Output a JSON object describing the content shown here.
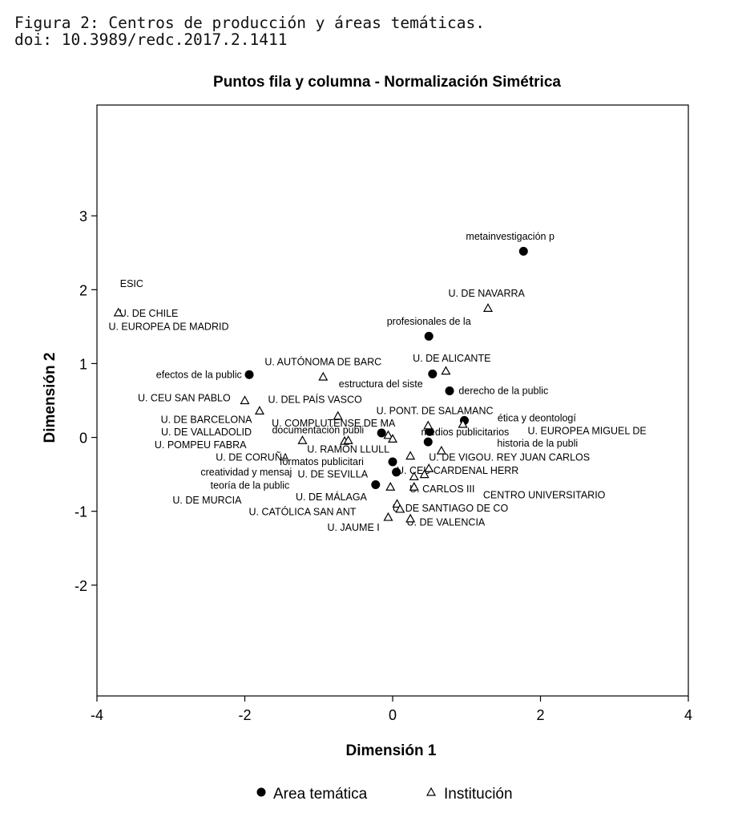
{
  "caption": {
    "line1": "Figura 2: Centros de producción y áreas temáticas.",
    "line2": "doi: 10.3989/redc.2017.2.1411"
  },
  "chart_data": {
    "type": "scatter",
    "title": "Puntos fila y columna - Normalización Simétrica",
    "xlabel": "Dimensión 1",
    "ylabel": "Dimensión 2",
    "xlim": [
      -4,
      4
    ],
    "ylim": [
      -3.5,
      4.5
    ],
    "xticks": [
      -4,
      -2,
      0,
      2,
      4
    ],
    "yticks": [
      -2,
      -1,
      0,
      1,
      2,
      3
    ],
    "grid": false,
    "legend_position": "bottom",
    "series": [
      {
        "name": "Area temática",
        "marker": "filled-circle",
        "points": [
          {
            "x": 1.77,
            "y": 2.52,
            "label": "metainvestigación p"
          },
          {
            "x": 0.49,
            "y": 1.37,
            "label": "profesionales de la"
          },
          {
            "x": 0.54,
            "y": 0.86,
            "label": "estructura del siste"
          },
          {
            "x": -1.94,
            "y": 0.85,
            "label": "efectos de la public"
          },
          {
            "x": 0.77,
            "y": 0.63,
            "label": "derecho de la public"
          },
          {
            "x": 0.97,
            "y": 0.23,
            "label": "ética y deontologí"
          },
          {
            "x": -0.15,
            "y": 0.06,
            "label": "documentación publi"
          },
          {
            "x": 0.5,
            "y": 0.08,
            "label": "medios publicitarios"
          },
          {
            "x": 0.48,
            "y": -0.06,
            "label": "historia de la publi"
          },
          {
            "x": 0.0,
            "y": -0.33,
            "label": "formatos publicitari"
          },
          {
            "x": 0.05,
            "y": -0.47,
            "label": "creatividad y mensaj"
          },
          {
            "x": -0.23,
            "y": -0.64,
            "label": "teoría de la public"
          }
        ]
      },
      {
        "name": "Institución",
        "marker": "open-triangle",
        "points": [
          {
            "x": -3.71,
            "y": 1.69,
            "label": "U. DE CHILE"
          },
          {
            "x": 1.29,
            "y": 1.75,
            "label": "U. DE NAVARRA"
          },
          {
            "x": -0.94,
            "y": 0.82,
            "label": "U. AUTÓNOMA DE BARC"
          },
          {
            "x": 0.72,
            "y": 0.9,
            "label": "U. DE ALICANTE"
          },
          {
            "x": -2.0,
            "y": 0.5,
            "label": "U. CEU SAN PABLO"
          },
          {
            "x": -1.8,
            "y": 0.36,
            "label": "U. DEL PAÍS VASCO"
          },
          {
            "x": -0.74,
            "y": 0.29,
            "label": "U. COMPLUTENSE DE MA"
          },
          {
            "x": 0.48,
            "y": 0.16,
            "label": "U. PONT. DE SALAMANC"
          },
          {
            "x": 0.95,
            "y": 0.18,
            "label": "U. EUROPEA MIGUEL DE"
          },
          {
            "x": -1.22,
            "y": -0.04,
            "label": "U. DE CORUÑA"
          },
          {
            "x": -0.65,
            "y": -0.05,
            "label": "U. RAMÓN LLULL"
          },
          {
            "x": -0.6,
            "y": -0.04,
            "label": "U. DE BARCELONA"
          },
          {
            "x": -0.06,
            "y": 0.03,
            "label": "U. DE VALLADOLID"
          },
          {
            "x": 0.0,
            "y": -0.02,
            "label": "U. POMPEU FABRA"
          },
          {
            "x": 0.66,
            "y": -0.18,
            "label": "U. REY JUAN CARLOS"
          },
          {
            "x": 0.24,
            "y": -0.25,
            "label": "U. DE VIGO"
          },
          {
            "x": 0.49,
            "y": -0.42,
            "label": "U. CEU CARDENAL HERR"
          },
          {
            "x": 0.29,
            "y": -0.53,
            "label": "U. DE SEVILLA"
          },
          {
            "x": 0.43,
            "y": -0.5,
            "label": "CENTRO UNIVERSITARIO"
          },
          {
            "x": -0.03,
            "y": -0.67,
            "label": "U. DE MÁLAGA"
          },
          {
            "x": 0.29,
            "y": -0.67,
            "label": "U. CARLOS III"
          },
          {
            "x": 0.06,
            "y": -0.9,
            "label": "U. DE SANTIAGO DE CO"
          },
          {
            "x": 0.1,
            "y": -0.97,
            "label": "U. DE MURCIA"
          },
          {
            "x": -0.06,
            "y": -1.08,
            "label": "U. CATÓLICA SAN ANT"
          },
          {
            "x": 0.24,
            "y": -1.1,
            "label": "U. DE VALENCIA"
          }
        ]
      }
    ],
    "annotations": [
      {
        "text": "ESIC",
        "x": -3.53,
        "y": 2.08
      },
      {
        "text": "U. EUROPEA DE MADRID",
        "x": -3.03,
        "y": 1.5
      },
      {
        "text": "U. DE CHILE",
        "x": -3.3,
        "y": 1.68
      },
      {
        "text": "U. DE NAVARRA",
        "x": 1.27,
        "y": 1.95
      },
      {
        "text": "profesionales de la",
        "x": 0.49,
        "y": 1.57
      },
      {
        "text": "metainvestigación p",
        "x": 1.59,
        "y": 2.72
      },
      {
        "text": "U. AUTÓNOMA DE BARC",
        "x": -0.94,
        "y": 1.02
      },
      {
        "text": "U. DE ALICANTE",
        "x": 0.8,
        "y": 1.07
      },
      {
        "text": "efectos de la public",
        "x": -2.62,
        "y": 0.85
      },
      {
        "text": "estructura del siste",
        "x": -0.16,
        "y": 0.72
      },
      {
        "text": "derecho de la public",
        "x": 1.5,
        "y": 0.63
      },
      {
        "text": "U. CEU SAN PABLO",
        "x": -2.82,
        "y": 0.53
      },
      {
        "text": "U. DEL PAÍS VASCO",
        "x": -1.05,
        "y": 0.51
      },
      {
        "text": "U. PONT. DE SALAMANC",
        "x": 0.57,
        "y": 0.36
      },
      {
        "text": "U. DE BARCELONA",
        "x": -2.52,
        "y": 0.24
      },
      {
        "text": "U. COMPLUTENSE DE MA",
        "x": -0.8,
        "y": 0.19
      },
      {
        "text": "ética y deontologí",
        "x": 1.95,
        "y": 0.26
      },
      {
        "text": "U. DE VALLADOLID",
        "x": -2.52,
        "y": 0.07
      },
      {
        "text": "documentación publi",
        "x": -1.01,
        "y": 0.1
      },
      {
        "text": "medios publicitarios",
        "x": 0.98,
        "y": 0.07
      },
      {
        "text": "U. EUROPEA MIGUEL DE",
        "x": 2.63,
        "y": 0.09
      },
      {
        "text": "U. POMPEU FABRA",
        "x": -2.6,
        "y": -0.1
      },
      {
        "text": "historia de la publi",
        "x": 1.96,
        "y": -0.08
      },
      {
        "text": "U. RAMÓN LLULL",
        "x": -0.6,
        "y": -0.16
      },
      {
        "text": "U. DE CORUÑA",
        "x": -1.9,
        "y": -0.27
      },
      {
        "text": "U. DE VIGO",
        "x": 0.86,
        "y": -0.27
      },
      {
        "text": "U. REY JUAN CARLOS",
        "x": 1.95,
        "y": -0.27
      },
      {
        "text": "formatos publicitari",
        "x": -0.96,
        "y": -0.33
      },
      {
        "text": "creatividad y mensaj",
        "x": -1.98,
        "y": -0.47
      },
      {
        "text": "U. CEU CARDENAL HERR",
        "x": 0.88,
        "y": -0.45
      },
      {
        "text": "U. DE SEVILLA",
        "x": -0.81,
        "y": -0.5
      },
      {
        "text": "teoría de la public",
        "x": -1.93,
        "y": -0.65
      },
      {
        "text": "U. CARLOS III",
        "x": 0.67,
        "y": -0.7
      },
      {
        "text": "U. DE MÁLAGA",
        "x": -0.83,
        "y": -0.81
      },
      {
        "text": "CENTRO UNIVERSITARIO",
        "x": 2.05,
        "y": -0.78
      },
      {
        "text": "U. DE MURCIA",
        "x": -2.51,
        "y": -0.85
      },
      {
        "text": "U. DE SANTIAGO DE CO",
        "x": 0.78,
        "y": -0.96
      },
      {
        "text": "U. CATÓLICA SAN ANT",
        "x": -1.22,
        "y": -1.01
      },
      {
        "text": "U. DE VALENCIA",
        "x": 0.72,
        "y": -1.15
      },
      {
        "text": "U. JAUME I",
        "x": -0.53,
        "y": -1.22
      }
    ]
  }
}
